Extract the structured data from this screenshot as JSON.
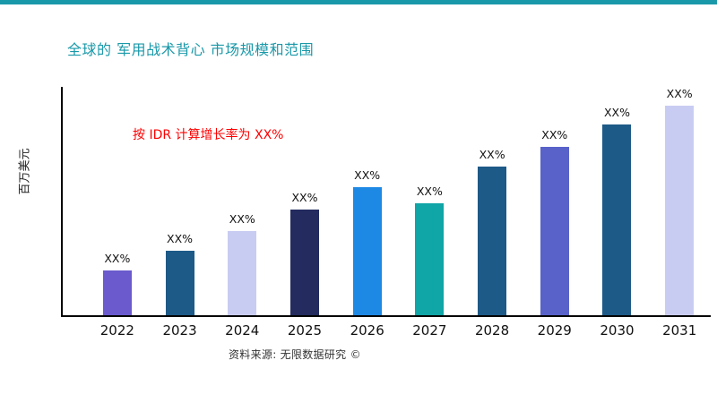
{
  "page": {
    "accent_color": "#1898A8",
    "title_color": "#1898A8",
    "annotation_color": "#FF0000",
    "axis_color": "#000000"
  },
  "chart_data": {
    "type": "bar",
    "title": "全球的 军用战术背心 市场规模和范围",
    "annotation": "按 IDR 计算增长率为 XX%",
    "ylabel": "百万美元",
    "xlabel": "",
    "categories": [
      "2022",
      "2023",
      "2024",
      "2025",
      "2026",
      "2027",
      "2028",
      "2029",
      "2030",
      "2031"
    ],
    "values": [
      49,
      71,
      92,
      116,
      140,
      123,
      163,
      184,
      209,
      233
    ],
    "bar_labels": [
      "XX%",
      "XX%",
      "XX%",
      "XX%",
      "XX%",
      "XX%",
      "XX%",
      "XX%",
      "XX%",
      "XX%"
    ],
    "bar_colors": [
      "#6A5ACD",
      "#1D5A87",
      "#C9CCF2",
      "#232B5F",
      "#1E88E5",
      "#10A5A6",
      "#1D5A87",
      "#5862C9",
      "#1D5A87",
      "#C9CCF2"
    ],
    "ylim": [
      0,
      250
    ],
    "grid": false,
    "legend": false,
    "source": "资料来源: 无限数据研究 ©"
  }
}
